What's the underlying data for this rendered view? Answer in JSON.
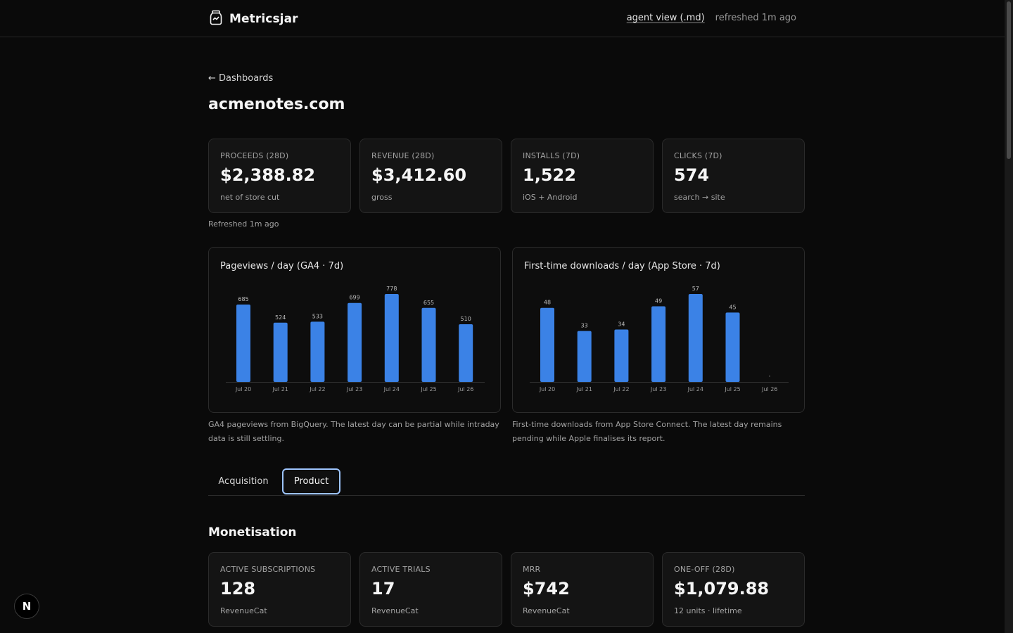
{
  "app": {
    "name": "Metricsjar",
    "agent_view_label": "agent view (.md)",
    "refreshed_text": "refreshed 1m ago"
  },
  "nav": {
    "back_label": "← Dashboards"
  },
  "page": {
    "title": "acmenotes.com"
  },
  "kpis": [
    {
      "label": "PROCEEDS (28D)",
      "value": "$2,388.82",
      "sub": "net of store cut"
    },
    {
      "label": "REVENUE (28D)",
      "value": "$3,412.60",
      "sub": "gross"
    },
    {
      "label": "INSTALLS (7D)",
      "value": "1,522",
      "sub": "iOS + Android"
    },
    {
      "label": "CLICKS (7D)",
      "value": "574",
      "sub": "search → site"
    }
  ],
  "kpi_refreshed": "Refreshed 1m ago",
  "charts": {
    "pageviews": {
      "title": "Pageviews / day (GA4 · 7d)",
      "description": "GA4 pageviews from BigQuery. The latest day can be partial while intraday data is still settling."
    },
    "downloads": {
      "title": "First-time downloads / day (App Store · 7d)",
      "description": "First-time downloads from App Store Connect. The latest day remains pending while Apple finalises its report."
    }
  },
  "chart_data": [
    {
      "type": "bar",
      "title": "Pageviews / day (GA4 · 7d)",
      "categories": [
        "Jul 20",
        "Jul 21",
        "Jul 22",
        "Jul 23",
        "Jul 24",
        "Jul 25",
        "Jul 26"
      ],
      "values": [
        685,
        524,
        533,
        699,
        778,
        655,
        510
      ],
      "color": "#3b82e6",
      "grid": false
    },
    {
      "type": "bar",
      "title": "First-time downloads / day (App Store · 7d)",
      "categories": [
        "Jul 20",
        "Jul 21",
        "Jul 22",
        "Jul 23",
        "Jul 24",
        "Jul 25",
        "Jul 26"
      ],
      "values": [
        48,
        33,
        34,
        49,
        57,
        45,
        null
      ],
      "color": "#3b82e6",
      "grid": false
    }
  ],
  "tabs": [
    {
      "label": "Acquisition",
      "active": false
    },
    {
      "label": "Product",
      "active": true
    }
  ],
  "monetisation": {
    "title": "Monetisation",
    "cards": [
      {
        "label": "ACTIVE SUBSCRIPTIONS",
        "value": "128",
        "sub": "RevenueCat"
      },
      {
        "label": "ACTIVE TRIALS",
        "value": "17",
        "sub": "RevenueCat"
      },
      {
        "label": "MRR",
        "value": "$742",
        "sub": "RevenueCat"
      },
      {
        "label": "ONE-OFF (28D)",
        "value": "$1,079.88",
        "sub": "12 units · lifetime"
      }
    ]
  },
  "badge": {
    "letter": "N"
  },
  "colors": {
    "background": "#0a0a0a",
    "card": "#141414",
    "bar": "#3b82e6",
    "active_tab_border": "#9ec5ff"
  }
}
